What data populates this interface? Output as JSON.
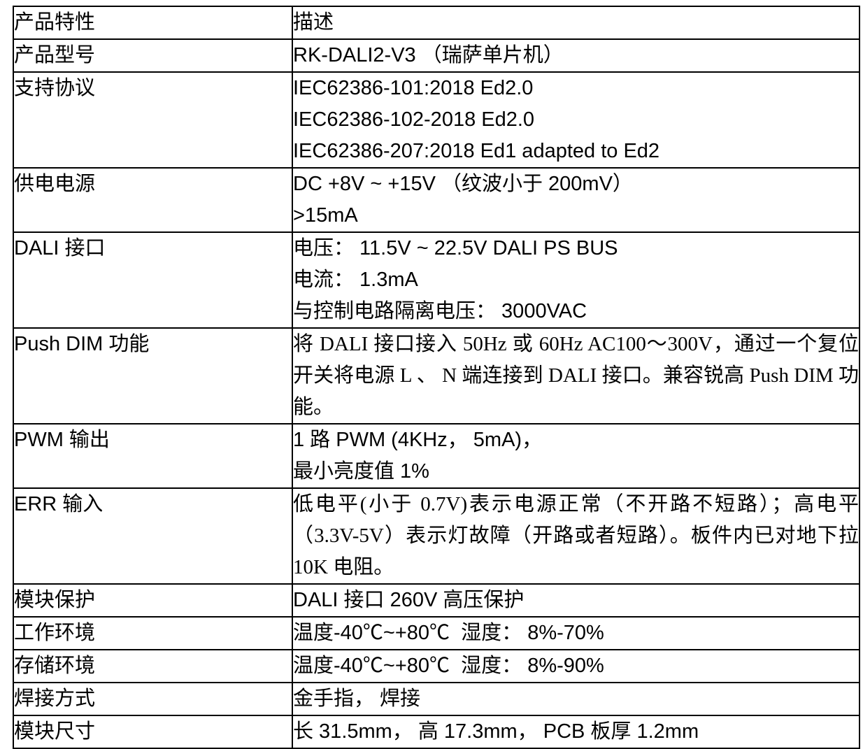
{
  "table": {
    "header": {
      "feature": "产品特性",
      "description": "描述"
    },
    "rows": [
      {
        "feature": "产品型号",
        "lines": [
          "RK-DALI2-V3 （瑞萨单片机）"
        ]
      },
      {
        "feature": "支持协议",
        "lines": [
          "IEC62386-101:2018 Ed2.0",
          "IEC62386-102-2018 Ed2.0",
          "IEC62386-207:2018 Ed1 adapted to Ed2"
        ]
      },
      {
        "feature": "供电电源",
        "lines": [
          "DC +8V ~ +15V （纹波小于 200mV）",
          ">15mA"
        ]
      },
      {
        "feature": "DALI 接口",
        "lines": [
          "电压： 11.5V ~ 22.5V DALI PS BUS",
          "电流： 1.3mA",
          "与控制电路隔离电压： 3000VAC"
        ]
      },
      {
        "feature": "Push DIM 功能",
        "paragraph": "将 DALI 接口接入 50Hz 或 60Hz AC100～300V，通过一个复位开关将电源 L 、 N 端连接到 DALI 接口。兼容锐高 Push DIM 功能。"
      },
      {
        "feature": "PWM 输出",
        "lines": [
          "1 路 PWM (4KHz， 5mA)，",
          "最小亮度值 1%"
        ]
      },
      {
        "feature": "ERR 输入",
        "paragraph": "低电平(小于 0.7V)表示电源正常（不开路不短路）；高电平（3.3V-5V）表示灯故障（开路或者短路）。板件内已对地下拉 10K 电阻。"
      },
      {
        "feature": "模块保护",
        "lines": [
          "DALI 接口 260V 高压保护"
        ]
      },
      {
        "feature": "工作环境",
        "lines": [
          "温度-40℃~+80℃  湿度： 8%-70%"
        ]
      },
      {
        "feature": "存储环境",
        "lines": [
          "温度-40℃~+80℃  湿度： 8%-90%"
        ]
      },
      {
        "feature": "焊接方式",
        "lines": [
          "金手指， 焊接"
        ]
      },
      {
        "feature": "模块尺寸",
        "lines": [
          "长 31.5mm， 高 17.3mm， PCB 板厚 1.2mm"
        ]
      }
    ]
  }
}
